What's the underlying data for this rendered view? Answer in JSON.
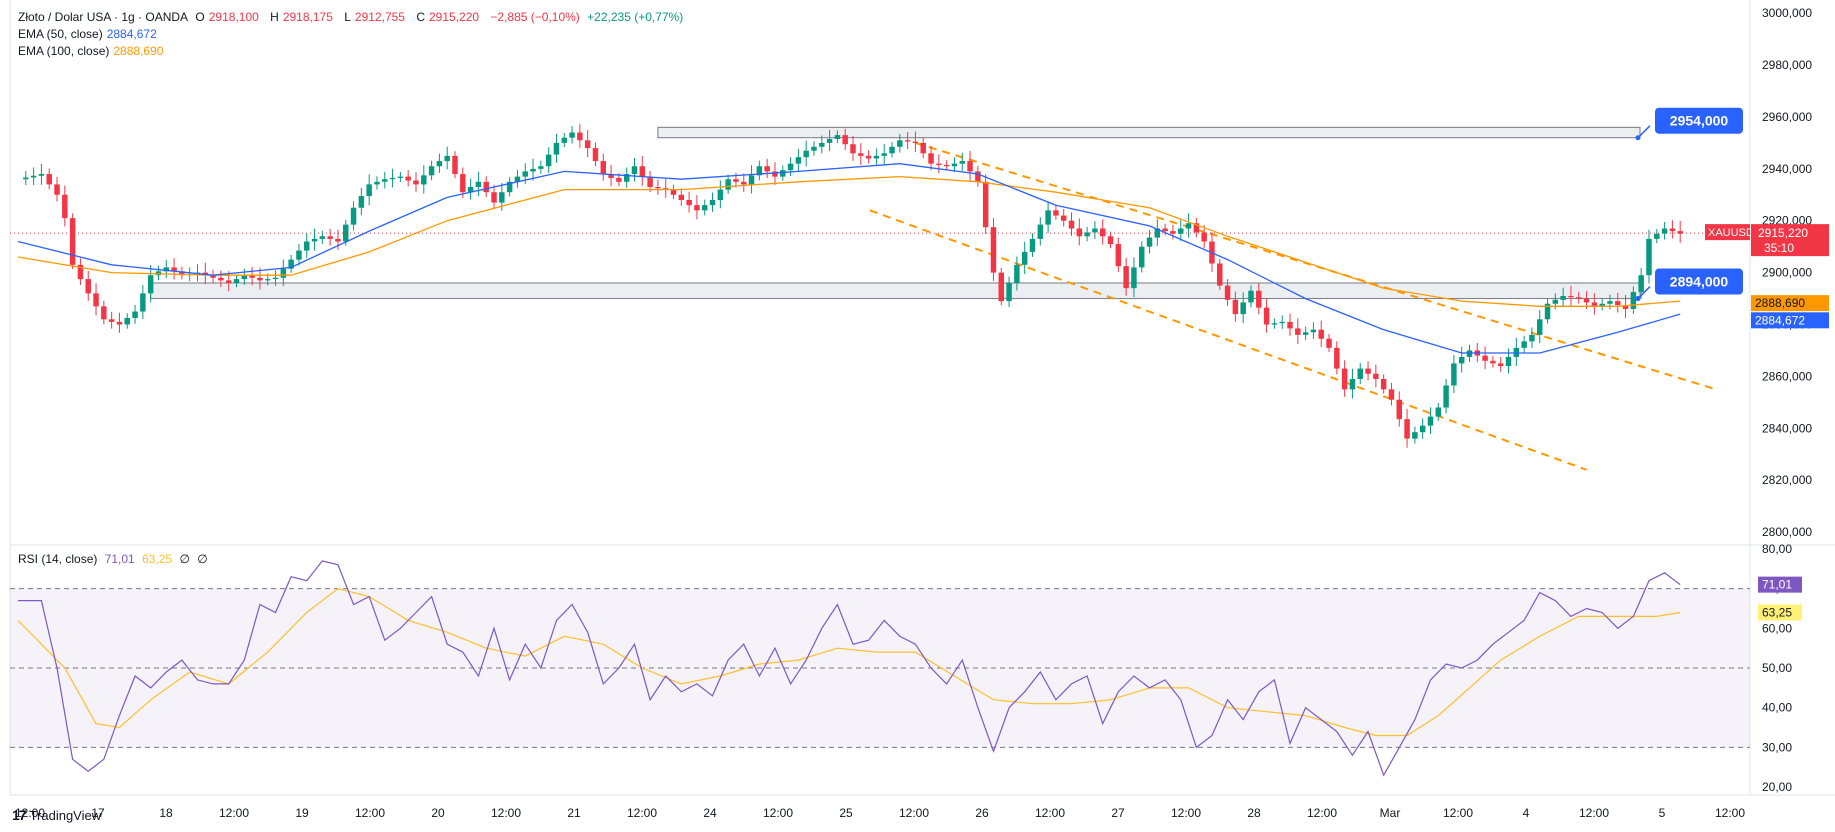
{
  "header": {
    "symbol_title": "Złoto / Dolar USA · 1g · OANDA",
    "open_label": "O",
    "open": "2918,100",
    "high_label": "H",
    "high": "2918,175",
    "low_label": "L",
    "low": "2912,755",
    "close_label": "C",
    "close": "2915,220",
    "change": "−2,885 (−0,10%)",
    "change2": "+22,235 (+0,77%)"
  },
  "ema50": {
    "label": "EMA (50, close)",
    "value": "2884,672",
    "color": "#2962ff"
  },
  "ema100": {
    "label": "EMA (100, close)",
    "value": "2888,690",
    "color": "#ff9800"
  },
  "rsi": {
    "label": "RSI (14, close)",
    "value": "71,01",
    "ma": "63,25",
    "extra1": "∅",
    "extra2": "∅",
    "rsi_color": "#7e57c2",
    "ma_color": "#fbc02d"
  },
  "price_tag": {
    "symbol": "XAUUSD",
    "price": "2915,220",
    "countdown": "35:10",
    "color": "#f23645"
  },
  "levels": {
    "upper": "2954,000",
    "lower": "2894,000",
    "color": "#2962ff"
  },
  "brand": "TradingView",
  "chart_data": {
    "type": "candlestick",
    "price_axis": {
      "ticks": [
        "3000,000",
        "2980,000",
        "2960,000",
        "2940,000",
        "2920,000",
        "2900,000",
        "2880,000",
        "2860,000",
        "2840,000",
        "2820,000",
        "2800,000"
      ],
      "ylim": [
        2795,
        3002
      ]
    },
    "rsi_axis": {
      "ticks": [
        "80,00",
        "70,00",
        "60,00",
        "50,00",
        "40,00",
        "30,00",
        "20,00"
      ],
      "ylim": [
        18,
        81
      ],
      "bands": [
        30,
        50,
        70
      ]
    },
    "x_axis": {
      "labels": [
        "12:00",
        "17",
        "18",
        "12:00",
        "19",
        "12:00",
        "20",
        "12:00",
        "21",
        "12:00",
        "24",
        "12:00",
        "25",
        "12:00",
        "26",
        "12:00",
        "27",
        "12:00",
        "28",
        "12:00",
        "Mar",
        "12:00",
        "4",
        "12:00",
        "5",
        "12:00"
      ]
    },
    "price_path": [
      [
        0,
        2936
      ],
      [
        3,
        2938
      ],
      [
        5,
        2930
      ],
      [
        6,
        2921
      ],
      [
        7,
        2903
      ],
      [
        9,
        2892
      ],
      [
        11,
        2882
      ],
      [
        13,
        2880
      ],
      [
        15,
        2885
      ],
      [
        17,
        2899
      ],
      [
        19,
        2902
      ],
      [
        21,
        2899
      ],
      [
        23,
        2900
      ],
      [
        25,
        2898
      ],
      [
        27,
        2896
      ],
      [
        29,
        2899
      ],
      [
        31,
        2897
      ],
      [
        33,
        2898
      ],
      [
        35,
        2905
      ],
      [
        37,
        2912
      ],
      [
        39,
        2914
      ],
      [
        41,
        2912
      ],
      [
        43,
        2925
      ],
      [
        45,
        2934
      ],
      [
        47,
        2936
      ],
      [
        49,
        2937
      ],
      [
        51,
        2934
      ],
      [
        53,
        2941
      ],
      [
        55,
        2945
      ],
      [
        57,
        2931
      ],
      [
        59,
        2935
      ],
      [
        61,
        2927
      ],
      [
        63,
        2935
      ],
      [
        65,
        2939
      ],
      [
        67,
        2941
      ],
      [
        69,
        2950
      ],
      [
        71,
        2954
      ],
      [
        73,
        2948
      ],
      [
        75,
        2938
      ],
      [
        77,
        2935
      ],
      [
        79,
        2941
      ],
      [
        81,
        2933
      ],
      [
        83,
        2932
      ],
      [
        85,
        2928
      ],
      [
        87,
        2924
      ],
      [
        89,
        2928
      ],
      [
        91,
        2936
      ],
      [
        93,
        2934
      ],
      [
        95,
        2941
      ],
      [
        97,
        2937
      ],
      [
        99,
        2942
      ],
      [
        101,
        2947
      ],
      [
        103,
        2950
      ],
      [
        105,
        2953
      ],
      [
        107,
        2946
      ],
      [
        109,
        2944
      ],
      [
        111,
        2946
      ],
      [
        113,
        2951
      ],
      [
        115,
        2950
      ],
      [
        117,
        2942
      ],
      [
        119,
        2941
      ],
      [
        121,
        2943
      ],
      [
        123,
        2935
      ],
      [
        125,
        2900
      ],
      [
        126,
        2889
      ],
      [
        128,
        2903
      ],
      [
        130,
        2913
      ],
      [
        132,
        2924
      ],
      [
        134,
        2920
      ],
      [
        136,
        2914
      ],
      [
        138,
        2917
      ],
      [
        140,
        2911
      ],
      [
        142,
        2894
      ],
      [
        144,
        2910
      ],
      [
        146,
        2917
      ],
      [
        148,
        2915
      ],
      [
        150,
        2919
      ],
      [
        152,
        2912
      ],
      [
        154,
        2895
      ],
      [
        156,
        2884
      ],
      [
        158,
        2893
      ],
      [
        160,
        2880
      ],
      [
        162,
        2881
      ],
      [
        164,
        2876
      ],
      [
        166,
        2878
      ],
      [
        168,
        2871
      ],
      [
        170,
        2855
      ],
      [
        172,
        2863
      ],
      [
        174,
        2859
      ],
      [
        176,
        2851
      ],
      [
        178,
        2836
      ],
      [
        180,
        2841
      ],
      [
        182,
        2848
      ],
      [
        184,
        2865
      ],
      [
        186,
        2870
      ],
      [
        188,
        2866
      ],
      [
        190,
        2864
      ],
      [
        192,
        2871
      ],
      [
        194,
        2876
      ],
      [
        196,
        2888
      ],
      [
        198,
        2891
      ],
      [
        200,
        2890
      ],
      [
        202,
        2887
      ],
      [
        204,
        2889
      ],
      [
        206,
        2886
      ],
      [
        208,
        2899
      ],
      [
        209,
        2913
      ],
      [
        211,
        2917
      ],
      [
        213,
        2915
      ]
    ],
    "ema50_path": [
      [
        0,
        2912
      ],
      [
        12,
        2903
      ],
      [
        25,
        2899
      ],
      [
        35,
        2902
      ],
      [
        45,
        2916
      ],
      [
        55,
        2929
      ],
      [
        70,
        2939
      ],
      [
        85,
        2936
      ],
      [
        100,
        2939
      ],
      [
        113,
        2942
      ],
      [
        123,
        2938
      ],
      [
        133,
        2926
      ],
      [
        145,
        2918
      ],
      [
        155,
        2905
      ],
      [
        165,
        2890
      ],
      [
        175,
        2878
      ],
      [
        185,
        2869
      ],
      [
        195,
        2869
      ],
      [
        205,
        2877
      ],
      [
        213,
        2884
      ]
    ],
    "ema100_path": [
      [
        0,
        2906
      ],
      [
        12,
        2900
      ],
      [
        25,
        2899
      ],
      [
        35,
        2899
      ],
      [
        45,
        2908
      ],
      [
        55,
        2920
      ],
      [
        70,
        2932
      ],
      [
        85,
        2932
      ],
      [
        100,
        2935
      ],
      [
        113,
        2937
      ],
      [
        123,
        2935
      ],
      [
        133,
        2931
      ],
      [
        145,
        2925
      ],
      [
        155,
        2914
      ],
      [
        165,
        2904
      ],
      [
        175,
        2894
      ],
      [
        185,
        2889
      ],
      [
        195,
        2887
      ],
      [
        205,
        2887
      ],
      [
        213,
        2889
      ]
    ],
    "rsi_path": [
      [
        0,
        67
      ],
      [
        3,
        67
      ],
      [
        5,
        50
      ],
      [
        7,
        27
      ],
      [
        9,
        24
      ],
      [
        11,
        27
      ],
      [
        13,
        38
      ],
      [
        15,
        48
      ],
      [
        17,
        45
      ],
      [
        19,
        49
      ],
      [
        21,
        52
      ],
      [
        23,
        47
      ],
      [
        25,
        46
      ],
      [
        27,
        46
      ],
      [
        29,
        52
      ],
      [
        31,
        66
      ],
      [
        33,
        64
      ],
      [
        35,
        73
      ],
      [
        37,
        72
      ],
      [
        39,
        77
      ],
      [
        41,
        76
      ],
      [
        43,
        66
      ],
      [
        45,
        68
      ],
      [
        47,
        57
      ],
      [
        49,
        60
      ],
      [
        51,
        64
      ],
      [
        53,
        68
      ],
      [
        55,
        56
      ],
      [
        57,
        54
      ],
      [
        59,
        48
      ],
      [
        61,
        60
      ],
      [
        63,
        47
      ],
      [
        65,
        56
      ],
      [
        67,
        50
      ],
      [
        69,
        62
      ],
      [
        71,
        66
      ],
      [
        73,
        59
      ],
      [
        75,
        46
      ],
      [
        77,
        50
      ],
      [
        79,
        56
      ],
      [
        81,
        42
      ],
      [
        83,
        48
      ],
      [
        85,
        44
      ],
      [
        87,
        46
      ],
      [
        89,
        43
      ],
      [
        91,
        52
      ],
      [
        93,
        56
      ],
      [
        95,
        48
      ],
      [
        97,
        55
      ],
      [
        99,
        46
      ],
      [
        101,
        52
      ],
      [
        103,
        60
      ],
      [
        105,
        66
      ],
      [
        107,
        56
      ],
      [
        109,
        57
      ],
      [
        111,
        62
      ],
      [
        113,
        58
      ],
      [
        115,
        56
      ],
      [
        117,
        50
      ],
      [
        119,
        46
      ],
      [
        121,
        52
      ],
      [
        123,
        40
      ],
      [
        125,
        29
      ],
      [
        127,
        40
      ],
      [
        129,
        44
      ],
      [
        131,
        49
      ],
      [
        133,
        42
      ],
      [
        135,
        46
      ],
      [
        137,
        48
      ],
      [
        139,
        36
      ],
      [
        141,
        44
      ],
      [
        143,
        48
      ],
      [
        145,
        45
      ],
      [
        147,
        47
      ],
      [
        149,
        42
      ],
      [
        151,
        30
      ],
      [
        153,
        33
      ],
      [
        155,
        42
      ],
      [
        157,
        37
      ],
      [
        159,
        44
      ],
      [
        161,
        47
      ],
      [
        163,
        31
      ],
      [
        165,
        40
      ],
      [
        167,
        37
      ],
      [
        169,
        34
      ],
      [
        171,
        28
      ],
      [
        173,
        34
      ],
      [
        175,
        23
      ],
      [
        177,
        30
      ],
      [
        179,
        37
      ],
      [
        181,
        47
      ],
      [
        183,
        51
      ],
      [
        185,
        50
      ],
      [
        187,
        52
      ],
      [
        189,
        56
      ],
      [
        191,
        59
      ],
      [
        193,
        62
      ],
      [
        195,
        69
      ],
      [
        197,
        67
      ],
      [
        199,
        63
      ],
      [
        201,
        65
      ],
      [
        203,
        64
      ],
      [
        205,
        60
      ],
      [
        207,
        63
      ],
      [
        209,
        72
      ],
      [
        211,
        74
      ],
      [
        213,
        71
      ]
    ],
    "rsi_ma_path": [
      [
        0,
        62
      ],
      [
        6,
        50
      ],
      [
        10,
        36
      ],
      [
        13,
        35
      ],
      [
        17,
        42
      ],
      [
        22,
        49
      ],
      [
        27,
        46
      ],
      [
        32,
        54
      ],
      [
        37,
        64
      ],
      [
        41,
        70
      ],
      [
        45,
        68
      ],
      [
        50,
        62
      ],
      [
        55,
        59
      ],
      [
        60,
        55
      ],
      [
        65,
        53
      ],
      [
        70,
        58
      ],
      [
        75,
        56
      ],
      [
        80,
        50
      ],
      [
        85,
        46
      ],
      [
        90,
        48
      ],
      [
        95,
        51
      ],
      [
        100,
        52
      ],
      [
        105,
        55
      ],
      [
        110,
        54
      ],
      [
        115,
        54
      ],
      [
        120,
        48
      ],
      [
        125,
        42
      ],
      [
        130,
        41
      ],
      [
        135,
        41
      ],
      [
        140,
        42
      ],
      [
        145,
        45
      ],
      [
        150,
        45
      ],
      [
        155,
        40
      ],
      [
        160,
        39
      ],
      [
        165,
        38
      ],
      [
        170,
        35
      ],
      [
        174,
        33
      ],
      [
        178,
        33
      ],
      [
        182,
        38
      ],
      [
        186,
        45
      ],
      [
        190,
        52
      ],
      [
        195,
        58
      ],
      [
        200,
        63
      ],
      [
        205,
        63
      ],
      [
        210,
        63
      ],
      [
        213,
        64
      ]
    ]
  }
}
